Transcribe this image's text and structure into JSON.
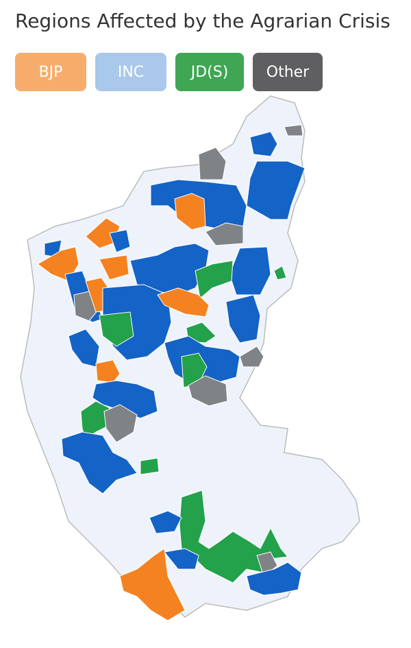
{
  "header": {
    "title": "Regions Affected by the Agrarian Crisis"
  },
  "legend": [
    "BJP",
    "INC",
    "JD(S)",
    "Other"
  ]
}
